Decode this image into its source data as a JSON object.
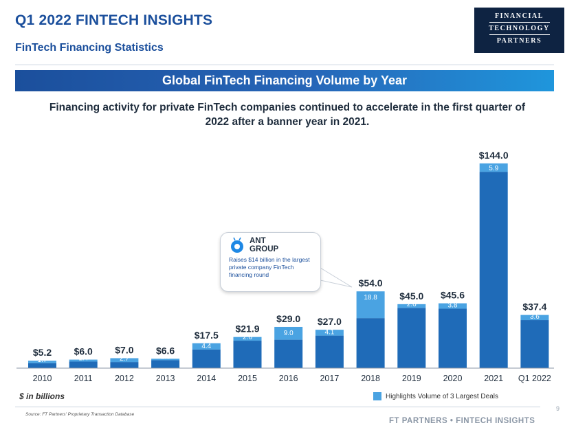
{
  "header": {
    "title": "Q1 2022 FINTECH INSIGHTS",
    "subtitle": "FinTech Financing Statistics",
    "logo_lines": [
      "FINANCIAL",
      "TECHNOLOGY",
      "PARTNERS"
    ]
  },
  "banner": "Global FinTech Financing Volume by Year",
  "headline": "Financing activity for private FinTech companies continued to accelerate in the first quarter of 2022 after a banner year in 2021.",
  "callout": {
    "company": "ANT GROUP",
    "text": "Raises $14 billion in the largest private company FinTech financing round"
  },
  "units_note": "$ in billions",
  "legend": "Highlights Volume of 3 Largest Deals",
  "source": "Source: FT Partners' Proprietary Transaction Database",
  "footer": "FT PARTNERS • FINTECH INSIGHTS",
  "page_number": "9",
  "colors": {
    "base": "#1f6bb8",
    "highlight": "#4aa3e2",
    "brand": "#1b4f9c",
    "logo_bg": "#0e2342"
  },
  "chart_data": {
    "type": "bar",
    "stacked": true,
    "categories": [
      "2010",
      "2011",
      "2012",
      "2013",
      "2014",
      "2015",
      "2016",
      "2017",
      "2018",
      "2019",
      "2020",
      "2021",
      "Q1 2022"
    ],
    "totals": [
      5.2,
      6.0,
      7.0,
      6.6,
      17.5,
      21.9,
      29.0,
      27.0,
      54.0,
      45.0,
      45.6,
      144.0,
      37.4
    ],
    "total_labels": [
      "$5.2",
      "$6.0",
      "$7.0",
      "$6.6",
      "$17.5",
      "$21.9",
      "$29.0",
      "$27.0",
      "$54.0",
      "$45.0",
      "$45.6",
      "$144.0",
      "$37.4"
    ],
    "series": [
      {
        "values": [
          3.5,
          4.6,
          4.3,
          5.6,
          13.1,
          19.3,
          20.0,
          22.9,
          35.2,
          42.4,
          41.8,
          138.1,
          33.8
        ]
      },
      {
        "name": "Highlights Volume of 3 Largest Deals",
        "values": [
          1.7,
          1.4,
          2.7,
          1.0,
          4.4,
          2.6,
          9.0,
          4.1,
          18.8,
          2.6,
          3.8,
          5.9,
          3.6
        ]
      }
    ],
    "highlight_labels": [
      "1.7",
      "1.4",
      "2.7",
      "1.0",
      "4.4",
      "2.6",
      "9.0",
      "4.1",
      "18.8",
      "2.6",
      "3.8",
      "5.9",
      "3.6"
    ],
    "ylabel": "$ in billions",
    "legend_position": "bottom-right",
    "grid": false
  }
}
